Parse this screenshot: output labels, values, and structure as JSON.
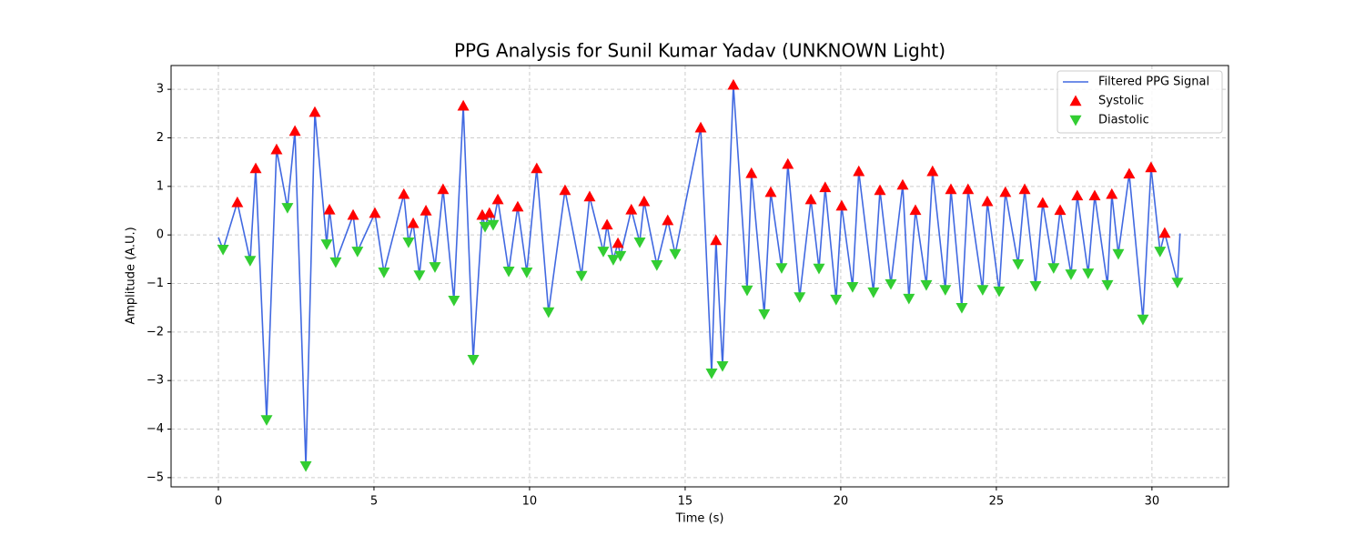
{
  "chart_data": {
    "type": "line",
    "title": "PPG Analysis for Sunil Kumar Yadav (UNKNOWN Light)",
    "x_label": "Time (s)",
    "y_label": "Amplitude (A.U.)",
    "xlim": [
      -1.52,
      32.46
    ],
    "ylim": [
      -5.19,
      3.49
    ],
    "xticks": [
      0,
      5,
      10,
      15,
      20,
      25,
      30
    ],
    "yticks": [
      {
        "value": -5,
        "label": "−5"
      },
      {
        "value": -4,
        "label": "−4"
      },
      {
        "value": -3,
        "label": "−3"
      },
      {
        "value": -2,
        "label": "−2"
      },
      {
        "value": -1,
        "label": "−1"
      },
      0,
      1,
      2,
      3
    ],
    "grid": true,
    "legend": "upper right",
    "series": [
      {
        "name": "Filtered PPG Signal",
        "type": "line",
        "color": "#4169e1",
        "x": [
          0,
          0.15,
          0.61,
          1.02,
          1.2,
          1.55,
          1.87,
          2.22,
          2.46,
          2.81,
          3.1,
          3.48,
          3.57,
          3.77,
          4.33,
          4.47,
          5.03,
          5.32,
          5.96,
          6.11,
          6.26,
          6.46,
          6.67,
          6.96,
          7.22,
          7.57,
          7.87,
          8.19,
          8.48,
          8.57,
          8.71,
          8.83,
          8.98,
          9.33,
          9.62,
          9.91,
          10.23,
          10.61,
          11.14,
          11.67,
          11.93,
          12.37,
          12.49,
          12.69,
          12.84,
          12.92,
          13.27,
          13.54,
          13.68,
          14.09,
          14.44,
          14.68,
          15.5,
          15.85,
          15.99,
          16.2,
          16.55,
          16.99,
          17.13,
          17.54,
          17.75,
          18.1,
          18.3,
          18.68,
          19.04,
          19.3,
          19.5,
          19.85,
          20.03,
          20.38,
          20.58,
          21.05,
          21.26,
          21.61,
          21.99,
          22.19,
          22.4,
          22.75,
          22.95,
          23.36,
          23.54,
          23.89,
          24.09,
          24.56,
          24.71,
          25.09,
          25.29,
          25.7,
          25.91,
          26.26,
          26.49,
          26.84,
          27.05,
          27.4,
          27.6,
          27.95,
          28.16,
          28.57,
          28.71,
          28.92,
          29.27,
          29.71,
          29.97,
          30.26,
          30.41,
          30.82,
          30.9
        ],
        "values": [
          -0.05,
          -0.3,
          0.67,
          -0.53,
          1.37,
          -3.81,
          1.76,
          0.56,
          2.14,
          -4.76,
          2.53,
          -0.19,
          0.52,
          -0.56,
          0.41,
          -0.34,
          0.45,
          -0.77,
          0.84,
          -0.15,
          0.24,
          -0.83,
          0.5,
          -0.66,
          0.94,
          -1.35,
          2.66,
          -2.57,
          0.41,
          0.17,
          0.45,
          0.21,
          0.73,
          -0.75,
          0.58,
          -0.77,
          1.37,
          -1.59,
          0.92,
          -0.84,
          0.79,
          -0.34,
          0.21,
          -0.51,
          -0.17,
          -0.43,
          0.52,
          -0.15,
          0.69,
          -0.62,
          0.3,
          -0.39,
          2.21,
          -2.85,
          -0.11,
          -2.7,
          3.09,
          -1.14,
          1.27,
          -1.63,
          0.88,
          -0.68,
          1.46,
          -1.28,
          0.73,
          -0.69,
          0.98,
          -1.33,
          0.6,
          -1.07,
          1.31,
          -1.18,
          0.92,
          -1.01,
          1.03,
          -1.31,
          0.51,
          -1.03,
          1.31,
          -1.13,
          0.94,
          -1.5,
          0.94,
          -1.13,
          0.69,
          -1.16,
          0.88,
          -0.6,
          0.94,
          -1.05,
          0.66,
          -0.68,
          0.51,
          -0.81,
          0.81,
          -0.79,
          0.81,
          -1.03,
          0.84,
          -0.39,
          1.26,
          -1.74,
          1.39,
          -0.34,
          0.04,
          -0.98,
          0.03
        ]
      },
      {
        "name": "Systolic",
        "type": "scatter",
        "marker": "triangle-up",
        "color": "#ff0000",
        "x": [
          0.61,
          1.2,
          1.87,
          2.46,
          3.1,
          3.57,
          4.33,
          5.03,
          5.96,
          6.26,
          6.67,
          7.22,
          7.87,
          8.48,
          8.71,
          8.98,
          9.62,
          10.23,
          11.14,
          11.93,
          12.49,
          12.84,
          13.27,
          13.68,
          14.44,
          15.5,
          15.99,
          16.55,
          17.13,
          17.75,
          18.3,
          19.04,
          19.5,
          20.03,
          20.58,
          21.26,
          21.99,
          22.4,
          22.95,
          23.54,
          24.09,
          24.71,
          25.29,
          25.91,
          26.49,
          27.05,
          27.6,
          28.16,
          28.71,
          29.27,
          29.97,
          30.41
        ],
        "values": [
          0.67,
          1.37,
          1.76,
          2.14,
          2.53,
          0.52,
          0.41,
          0.45,
          0.84,
          0.24,
          0.5,
          0.94,
          2.66,
          0.41,
          0.45,
          0.73,
          0.58,
          1.37,
          0.92,
          0.79,
          0.21,
          -0.17,
          0.52,
          0.69,
          0.3,
          2.21,
          -0.11,
          3.09,
          1.27,
          0.88,
          1.46,
          0.73,
          0.98,
          0.6,
          1.31,
          0.92,
          1.03,
          0.51,
          1.31,
          0.94,
          0.94,
          0.69,
          0.88,
          0.94,
          0.66,
          0.51,
          0.81,
          0.81,
          0.84,
          1.26,
          1.39,
          0.04
        ]
      },
      {
        "name": "Diastolic",
        "type": "scatter",
        "marker": "triangle-down",
        "color": "#32cd32",
        "x": [
          0.15,
          1.02,
          1.55,
          2.22,
          2.81,
          3.48,
          3.77,
          4.47,
          5.32,
          6.11,
          6.46,
          6.96,
          7.57,
          8.19,
          8.57,
          8.83,
          9.33,
          9.91,
          10.61,
          11.67,
          12.37,
          12.69,
          12.92,
          13.54,
          14.09,
          14.68,
          15.85,
          16.2,
          16.99,
          17.54,
          18.1,
          18.68,
          19.3,
          19.85,
          20.38,
          21.05,
          21.61,
          22.19,
          22.75,
          23.36,
          23.89,
          24.56,
          25.09,
          25.7,
          26.26,
          26.84,
          27.4,
          27.95,
          28.57,
          28.92,
          29.71,
          30.26,
          30.82
        ],
        "values": [
          -0.3,
          -0.53,
          -3.81,
          0.56,
          -4.76,
          -0.19,
          -0.56,
          -0.34,
          -0.77,
          -0.15,
          -0.83,
          -0.66,
          -1.35,
          -2.57,
          0.17,
          0.21,
          -0.75,
          -0.77,
          -1.59,
          -0.84,
          -0.34,
          -0.51,
          -0.43,
          -0.15,
          -0.62,
          -0.39,
          -2.85,
          -2.7,
          -1.14,
          -1.63,
          -0.68,
          -1.28,
          -0.69,
          -1.33,
          -1.07,
          -1.18,
          -1.01,
          -1.31,
          -1.03,
          -1.13,
          -1.5,
          -1.13,
          -1.16,
          -0.6,
          -1.05,
          -0.68,
          -0.81,
          -0.79,
          -1.03,
          -0.39,
          -1.74,
          -0.34,
          -0.98
        ]
      }
    ]
  }
}
